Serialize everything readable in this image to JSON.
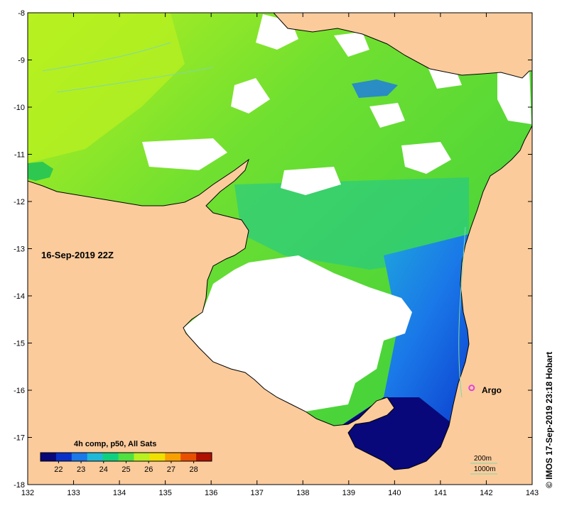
{
  "map": {
    "date_stamp": "16-Sep-2019 22Z",
    "credit": "© IMOS 17-Sep-2019 23:18 Hobart",
    "x_ticks": [
      "132",
      "133",
      "134",
      "135",
      "136",
      "137",
      "138",
      "139",
      "140",
      "141",
      "142",
      "143"
    ],
    "y_ticks": [
      "-8",
      "-9",
      "-10",
      "-11",
      "-12",
      "-13",
      "-14",
      "-15",
      "-16",
      "-17",
      "-18"
    ],
    "x_range": [
      132,
      143
    ],
    "y_range": [
      -18,
      -8
    ],
    "marker": {
      "label": "Argo",
      "lon": 141.68,
      "lat": -15.95,
      "color": "#e040e0"
    },
    "colorbar": {
      "title": "4h comp, p50, All Sats",
      "ticks": [
        "22",
        "23",
        "24",
        "25",
        "26",
        "27",
        "28"
      ],
      "range": [
        21.2,
        28.8
      ],
      "colors": [
        "#08087a",
        "#0830c8",
        "#1a78e8",
        "#20b8d8",
        "#10d080",
        "#50e040",
        "#b8f020",
        "#f0e000",
        "#f8a000",
        "#e85000",
        "#b01000"
      ]
    },
    "legend": {
      "isobath_200": "200m",
      "isobath_1000": "1000m"
    },
    "colors": {
      "land": "#fbcb9c",
      "no_data": "#ffffff",
      "isobath": "#7fd8a8",
      "coast": "#000000"
    }
  }
}
